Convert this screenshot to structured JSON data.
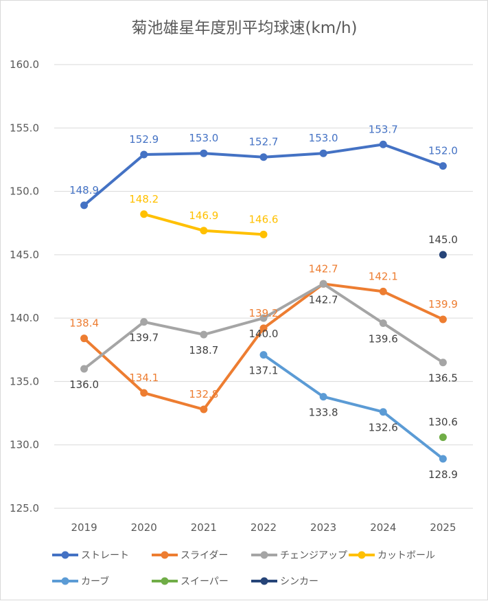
{
  "chart_data": {
    "type": "line",
    "title": "菊池雄星年度別平均球速(km/h)",
    "xlabel": "",
    "ylabel": "",
    "categories": [
      "2019",
      "2020",
      "2021",
      "2022",
      "2023",
      "2024",
      "2025"
    ],
    "ylim": [
      125.0,
      160.0
    ],
    "yticks": [
      "125.0",
      "130.0",
      "135.0",
      "140.0",
      "145.0",
      "150.0",
      "155.0",
      "160.0"
    ],
    "grid": true,
    "legend_position": "bottom",
    "series": [
      {
        "name": "ストレート",
        "color": "#4472C4",
        "values": [
          148.9,
          152.9,
          153.0,
          152.7,
          153.0,
          153.7,
          152.0
        ],
        "display": [
          "148.9",
          "152.9",
          "153.0",
          "152.7",
          "153.0",
          "153.7",
          "152.0"
        ],
        "label_pos": [
          "above",
          "above",
          "above",
          "above",
          "above",
          "above",
          "above"
        ],
        "label_color": "#4472C4"
      },
      {
        "name": "スライダー",
        "color": "#ED7D31",
        "values": [
          138.4,
          134.1,
          132.8,
          139.2,
          142.7,
          142.1,
          139.9
        ],
        "display": [
          "138.4",
          "134.1",
          "132.8",
          "139.2",
          "142.7",
          "142.1",
          "139.9"
        ],
        "label_pos": [
          "above",
          "above",
          "above",
          "above",
          "above",
          "above",
          "above"
        ],
        "label_color": "#ED7D31"
      },
      {
        "name": "チェンジアップ",
        "color": "#A5A5A5",
        "values": [
          136.0,
          139.7,
          138.7,
          140.0,
          142.7,
          139.6,
          136.5
        ],
        "display": [
          "136.0",
          "139.7",
          "138.7",
          "140.0",
          "142.7",
          "139.6",
          "136.5"
        ],
        "label_pos": [
          "below",
          "below",
          "below",
          "below",
          "below",
          "below",
          "below"
        ],
        "label_color": "#404040"
      },
      {
        "name": "カットボール",
        "color": "#FFC000",
        "values": [
          null,
          148.2,
          146.9,
          146.6,
          null,
          null,
          null
        ],
        "display": [
          "",
          "148.2",
          "146.9",
          "146.6",
          "",
          "",
          ""
        ],
        "label_pos": [
          "above",
          "above",
          "above",
          "above",
          "above",
          "above",
          "above"
        ],
        "label_color": "#FFC000"
      },
      {
        "name": "カーブ",
        "color": "#5B9BD5",
        "values": [
          null,
          null,
          null,
          137.1,
          133.8,
          132.6,
          128.9
        ],
        "display": [
          "",
          "",
          "",
          "137.1",
          "133.8",
          "132.6",
          "128.9"
        ],
        "label_pos": [
          "below",
          "below",
          "below",
          "below",
          "below",
          "below",
          "below"
        ],
        "label_color": "#404040"
      },
      {
        "name": "スイーパー",
        "color": "#70AD47",
        "values": [
          null,
          null,
          null,
          null,
          null,
          null,
          130.6
        ],
        "display": [
          "",
          "",
          "",
          "",
          "",
          "",
          "130.6"
        ],
        "label_pos": [
          "above",
          "above",
          "above",
          "above",
          "above",
          "above",
          "above"
        ],
        "label_color": "#404040"
      },
      {
        "name": "シンカー",
        "color": "#264478",
        "values": [
          null,
          null,
          null,
          null,
          null,
          null,
          145.0
        ],
        "display": [
          "",
          "",
          "",
          "",
          "",
          "",
          "145.0"
        ],
        "label_pos": [
          "above",
          "above",
          "above",
          "above",
          "above",
          "above",
          "above"
        ],
        "label_color": "#404040"
      }
    ]
  }
}
